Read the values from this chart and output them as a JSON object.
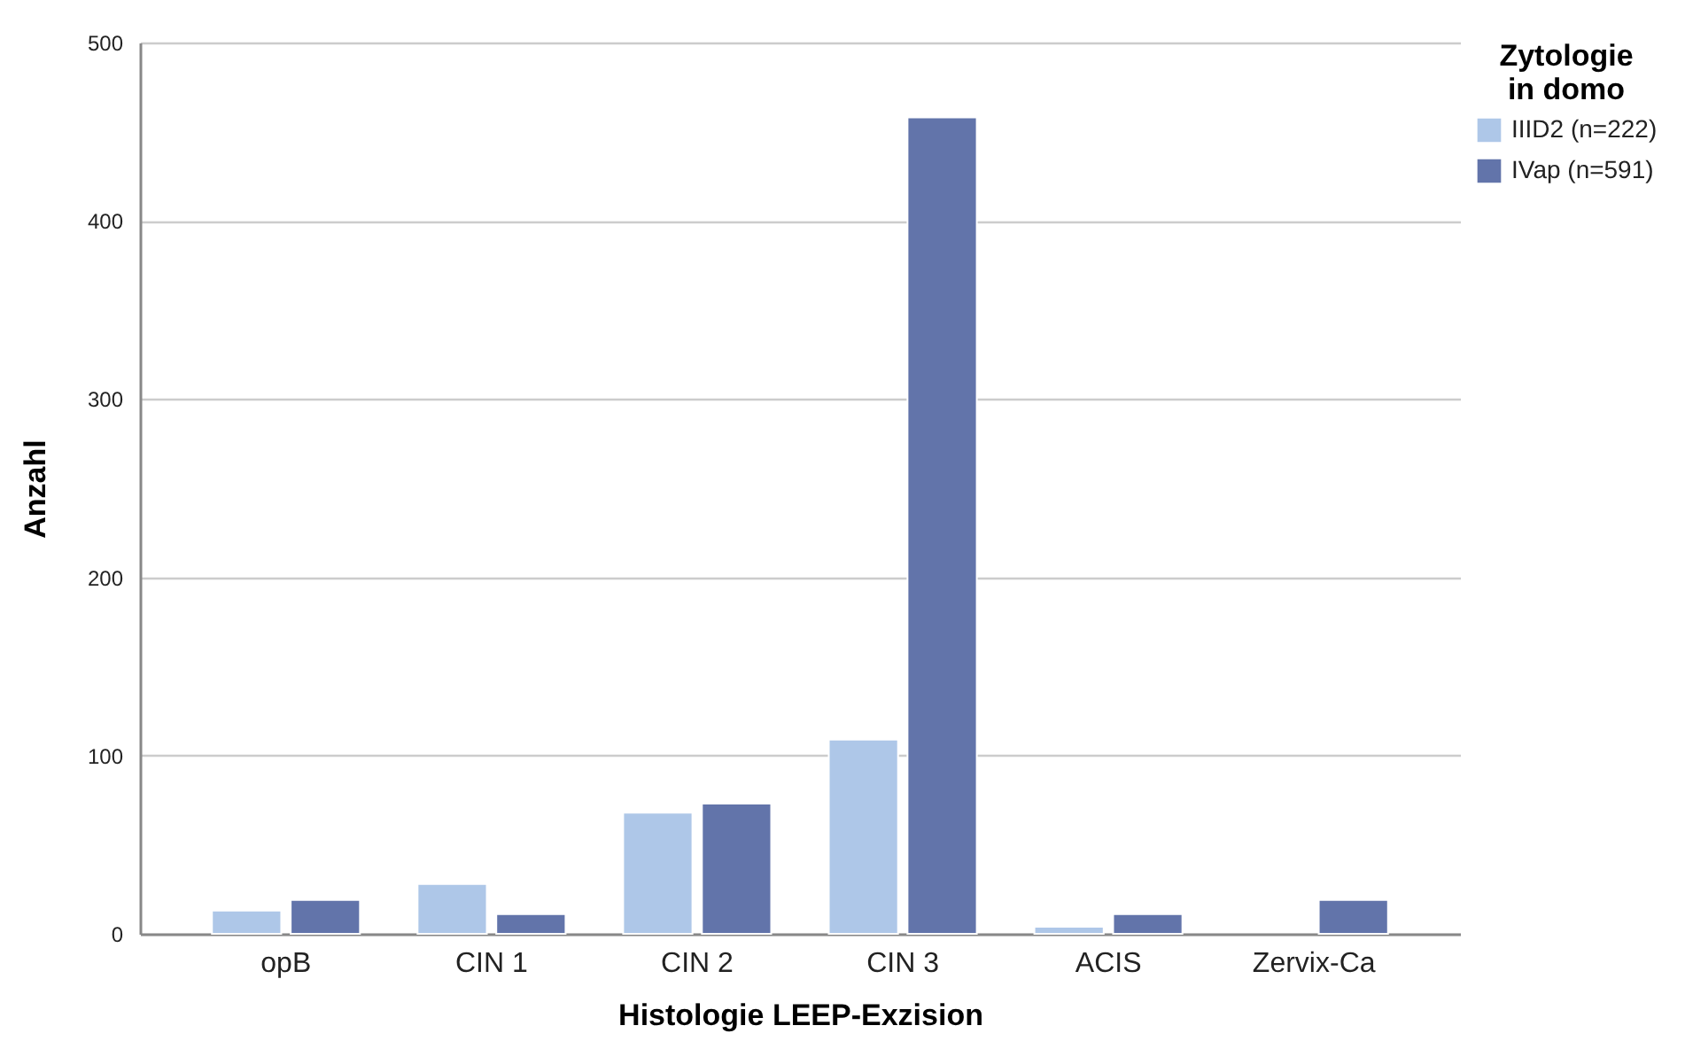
{
  "chart_data": {
    "type": "bar",
    "xlabel": "Histologie LEEP-Exzision",
    "ylabel": "Anzahl",
    "legend_title": "Zytologie in domo",
    "categories": [
      "opB",
      "CIN 1",
      "CIN 2",
      "CIN 3",
      "ACIS",
      "Zervix-Ca"
    ],
    "series": [
      {
        "name": "IIID2 (n=222)",
        "color": "#aec7e8",
        "values": [
          13,
          28,
          68,
          109,
          4,
          null
        ]
      },
      {
        "name": "IVap (n=591)",
        "color": "#6274aa",
        "values": [
          19,
          11,
          73,
          458,
          11,
          19
        ]
      }
    ],
    "ylim": [
      0,
      500
    ],
    "yticks": [
      0,
      100,
      200,
      300,
      400,
      500
    ],
    "grid": "y",
    "legend": "top right"
  }
}
